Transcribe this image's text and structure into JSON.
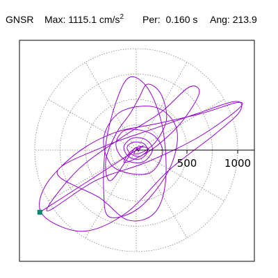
{
  "header": {
    "station": "GNSR",
    "max_label": "Max:",
    "max_value": "1115.1",
    "max_unit": "cm/s",
    "max_unit_exp": "2",
    "period_label": "Per:",
    "period_value": "0.160 s",
    "angle_label": "Ang:",
    "angle_value": "213.9"
  },
  "chart_data": {
    "type": "polar orbit (particle motion)",
    "radial_ticks": [
      "500",
      "1000"
    ],
    "radial_tick_values": [
      500,
      1000
    ],
    "rings": [
      250,
      500,
      750,
      1000
    ],
    "spoke_angles_deg": [
      0,
      30,
      60,
      90,
      120,
      150,
      180,
      210,
      240,
      270,
      300,
      330
    ],
    "xlim": [
      -1150,
      1150
    ],
    "ylim": [
      -1115,
      1115
    ],
    "grid": true,
    "colors": {
      "trace": "#9400d3",
      "marker": "#008b6e",
      "grid": "#808080",
      "axis": "#000000"
    },
    "trace_points": [
      [
        0,
        0
      ],
      [
        60,
        30
      ],
      [
        120,
        10
      ],
      [
        40,
        -60
      ],
      [
        -50,
        -40
      ],
      [
        -90,
        30
      ],
      [
        -20,
        80
      ],
      [
        80,
        60
      ],
      [
        110,
        -20
      ],
      [
        30,
        -90
      ],
      [
        -80,
        -60
      ],
      [
        -120,
        40
      ],
      [
        -30,
        120
      ],
      [
        100,
        100
      ],
      [
        160,
        0
      ],
      [
        60,
        -120
      ],
      [
        -120,
        -90
      ],
      [
        -200,
        60
      ],
      [
        -100,
        200
      ],
      [
        150,
        160
      ],
      [
        260,
        -20
      ],
      [
        120,
        -230
      ],
      [
        -220,
        -170
      ],
      [
        -320,
        120
      ],
      [
        -150,
        380
      ],
      [
        200,
        420
      ],
      [
        400,
        200
      ],
      [
        330,
        -180
      ],
      [
        40,
        -560
      ],
      [
        -260,
        -660
      ],
      [
        -320,
        -420
      ],
      [
        -300,
        60
      ],
      [
        -190,
        500
      ],
      [
        -60,
        720
      ],
      [
        120,
        600
      ],
      [
        260,
        220
      ],
      [
        290,
        -300
      ],
      [
        180,
        -620
      ],
      [
        -80,
        -690
      ],
      [
        -360,
        -470
      ],
      [
        -780,
        -220
      ],
      [
        -330,
        30
      ],
      [
        170,
        210
      ],
      [
        600,
        360
      ],
      [
        980,
        480
      ],
      [
        1020,
        380
      ],
      [
        780,
        160
      ],
      [
        320,
        -200
      ],
      [
        -100,
        -620
      ],
      [
        -530,
        -800
      ],
      [
        -920,
        -640
      ],
      [
        -900,
        -360
      ],
      [
        -600,
        -40
      ],
      [
        -220,
        170
      ],
      [
        200,
        260
      ],
      [
        640,
        360
      ],
      [
        1000,
        470
      ],
      [
        1000,
        400
      ],
      [
        600,
        120
      ],
      [
        100,
        -120
      ],
      [
        -400,
        -300
      ],
      [
        -880,
        -600
      ],
      [
        -580,
        -200
      ],
      [
        -150,
        120
      ],
      [
        240,
        370
      ],
      [
        520,
        620
      ],
      [
        620,
        560
      ],
      [
        450,
        280
      ],
      [
        200,
        40
      ],
      [
        0,
        -80
      ],
      [
        -120,
        -120
      ],
      [
        -60,
        -20
      ],
      [
        40,
        40
      ],
      [
        20,
        -10
      ],
      [
        -20,
        10
      ],
      [
        -250,
        -300
      ],
      [
        -300,
        -100
      ],
      [
        -200,
        160
      ],
      [
        -60,
        360
      ],
      [
        30,
        520
      ],
      [
        110,
        650
      ],
      [
        240,
        560
      ],
      [
        300,
        320
      ],
      [
        220,
        120
      ],
      [
        100,
        0
      ],
      [
        -20,
        -40
      ],
      [
        10,
        20
      ],
      [
        -10,
        -10
      ],
      [
        5,
        5
      ],
      [
        -4,
        -3
      ],
      [
        -950,
        -612
      ]
    ],
    "end_marker": [
      -950,
      -612
    ]
  }
}
